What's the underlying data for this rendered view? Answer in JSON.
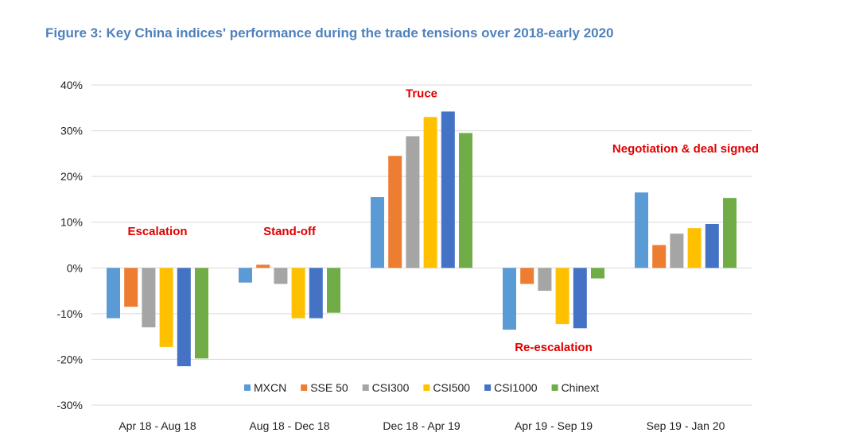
{
  "title": "Figure 3: Key China indices' performance during the trade tensions over 2018-early 2020",
  "chart_data": {
    "type": "bar",
    "categories": [
      "Apr 18 - Aug 18",
      "Aug 18 - Dec 18",
      "Dec 18 - Apr 19",
      "Apr 19 - Sep 19",
      "Sep 19 - Jan 20"
    ],
    "series": [
      {
        "name": "MXCN",
        "color": "#5B9BD5",
        "values": [
          -11.0,
          -3.2,
          15.5,
          -13.5,
          16.5
        ]
      },
      {
        "name": "SSE 50",
        "color": "#ED7D31",
        "values": [
          -8.5,
          0.7,
          24.5,
          -3.5,
          5.0
        ]
      },
      {
        "name": "CSI300",
        "color": "#A5A5A5",
        "values": [
          -13.0,
          -3.5,
          28.8,
          -5.0,
          7.5
        ]
      },
      {
        "name": "CSI500",
        "color": "#FFC000",
        "values": [
          -17.3,
          -11.0,
          33.0,
          -12.3,
          8.7
        ]
      },
      {
        "name": "CSI1000",
        "color": "#4472C4",
        "values": [
          -21.5,
          -11.0,
          34.2,
          -13.2,
          9.6
        ]
      },
      {
        "name": "Chinext",
        "color": "#70AD47",
        "values": [
          -19.8,
          -9.8,
          29.5,
          -2.3,
          15.3
        ]
      }
    ],
    "yticks": [
      "40%",
      "30%",
      "20%",
      "10%",
      "0%",
      "-10%",
      "-20%",
      "-30%"
    ],
    "ylim": [
      -30,
      40
    ],
    "grid": true,
    "legend": "bottom",
    "annotations": [
      {
        "text": "Escalation",
        "category": 0,
        "value": 7.2
      },
      {
        "text": "Stand-off",
        "category": 1,
        "value": 7.2
      },
      {
        "text": "Truce",
        "category": 2,
        "value": 37.3
      },
      {
        "text": "Re-escalation",
        "category": 3,
        "value": -18.2
      },
      {
        "text": "Negotiation & deal signed",
        "category": 4,
        "value": 25.2
      }
    ]
  }
}
